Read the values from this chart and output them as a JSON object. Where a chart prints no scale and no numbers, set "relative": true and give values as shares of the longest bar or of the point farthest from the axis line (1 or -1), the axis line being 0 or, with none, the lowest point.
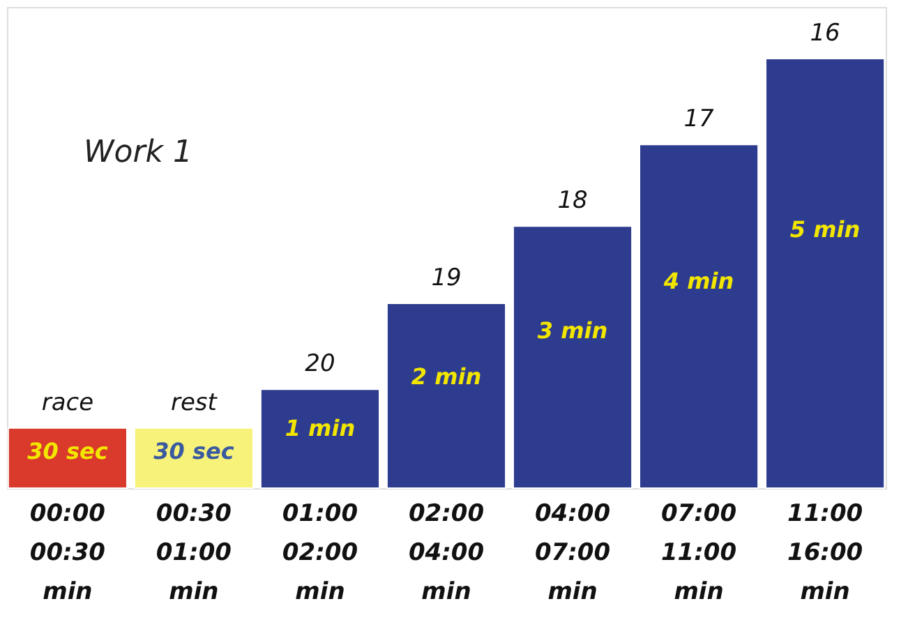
{
  "chart_data": {
    "type": "bar",
    "title": "Work 1",
    "relative": true,
    "categories": [
      "00:00\n00:30\nmin",
      "00:30\n01:00\nmin",
      "01:00\n02:00\nmin",
      "02:00\n04:00\nmin",
      "04:00\n07:00\nmin",
      "07:00\n11:00\nmin",
      "11:00\n16:00\nmin"
    ],
    "values": [
      0.14,
      0.14,
      0.23,
      0.43,
      0.61,
      0.8,
      1.0
    ],
    "colors": [
      "#d93a2b",
      "#f7f27a",
      "#2d3c8e",
      "#2d3c8e",
      "#2d3c8e",
      "#2d3c8e",
      "#2d3c8e"
    ],
    "annotations": [
      "30 sec",
      "30 sec",
      "1 min",
      "2 min",
      "3 min",
      "4 min",
      "5 min",
      {
        "text": "race",
        "x": "00:00\n00:30\nmin",
        "y": 0.14
      },
      {
        "text": "rest",
        "x": "00:30\n01:00\nmin",
        "y": 0.14
      },
      {
        "text": "20",
        "x": "01:00\n02:00\nmin",
        "y": 0.23
      },
      {
        "text": "19",
        "x": "02:00\n04:00\nmin",
        "y": 0.43
      },
      {
        "text": "18",
        "x": "04:00\n07:00\nmin",
        "y": 0.61
      },
      {
        "text": "17",
        "x": "07:00\n11:00\nmin",
        "y": 0.8
      },
      {
        "text": "16",
        "x": "11:00\n16:00\nmin",
        "y": 1.0
      }
    ]
  }
}
